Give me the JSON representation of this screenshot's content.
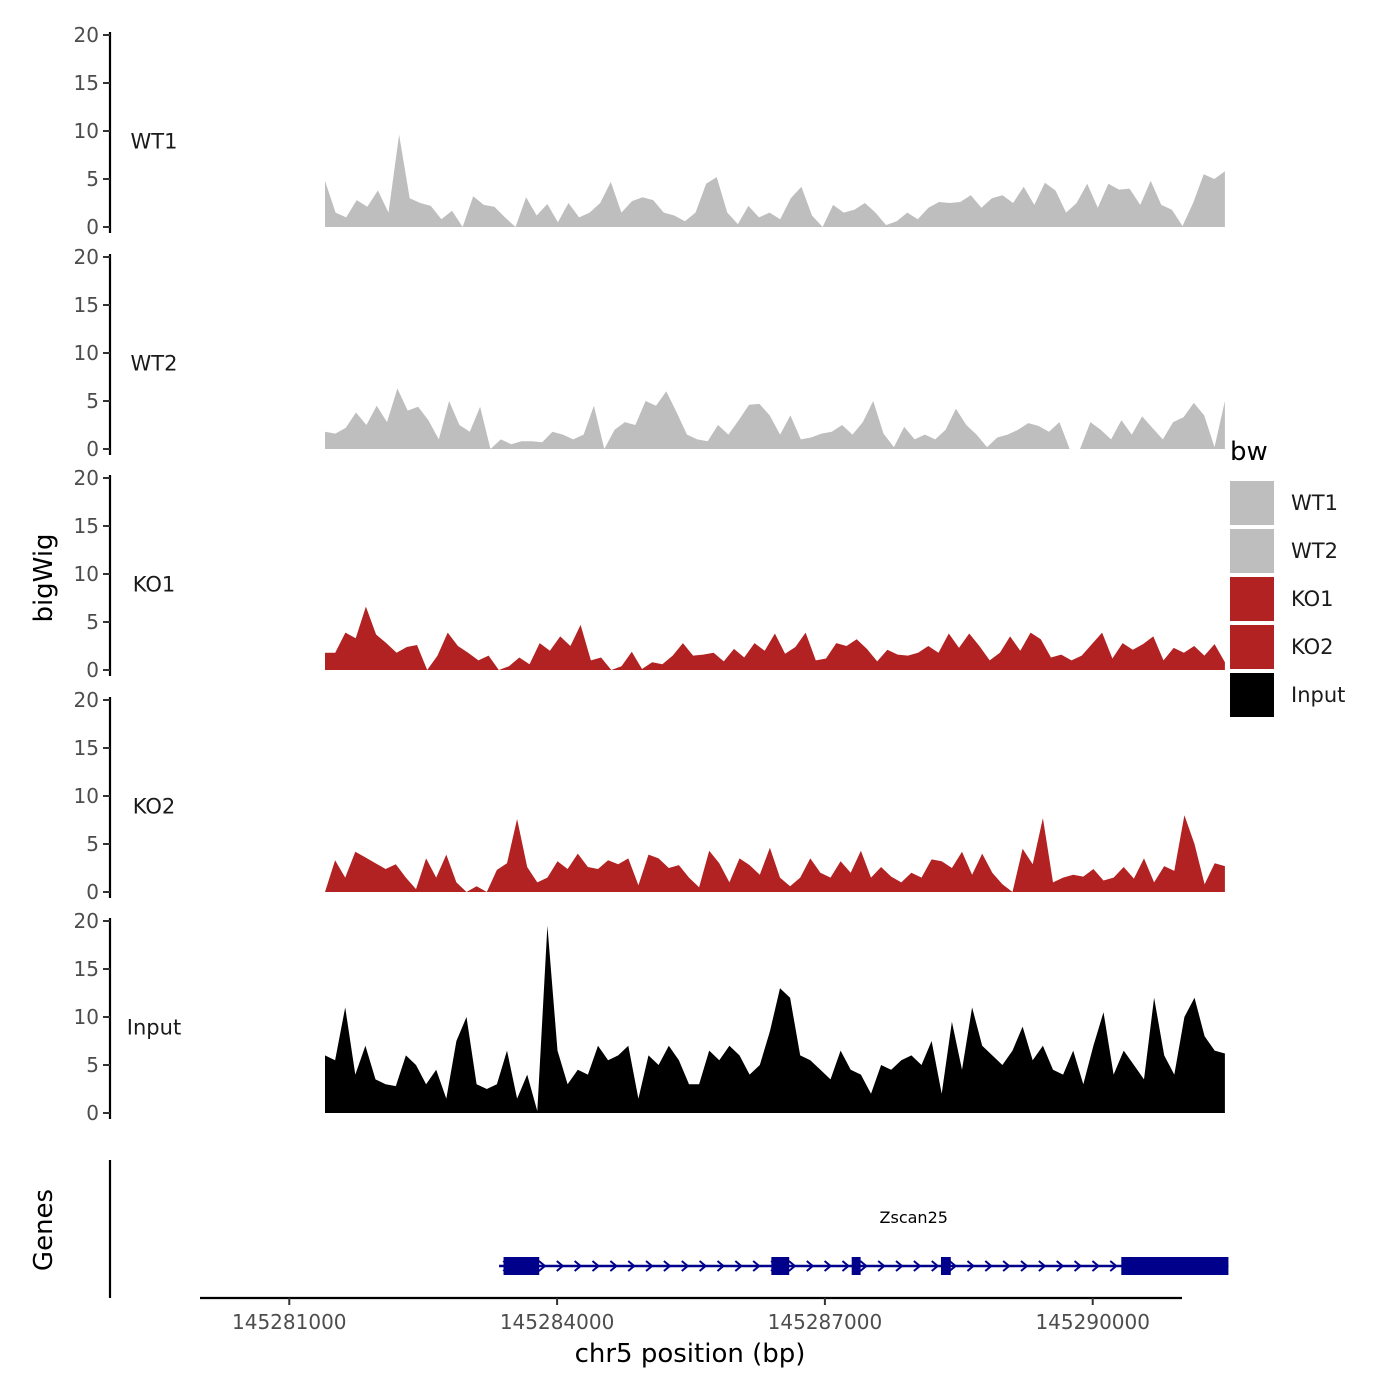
{
  "chart_data": {
    "type": "area",
    "ylabel": "bigWig",
    "xlabel": "chr5 position (bp)",
    "ylim": [
      0,
      20
    ],
    "yticks": [
      "0",
      "5",
      "10",
      "15",
      "20"
    ],
    "xlim": [
      145280000,
      145291000
    ],
    "xticks": [
      {
        "value": 145281000,
        "label": "145281000"
      },
      {
        "value": 145284000,
        "label": "145284000"
      },
      {
        "value": 145287000,
        "label": "145287000"
      },
      {
        "value": 145290000,
        "label": "145290000"
      }
    ],
    "data_range": [
      145281400,
      145291480
    ],
    "legend": {
      "title": "bw",
      "position": "right",
      "entries": [
        {
          "label": "WT1",
          "color": "#bebebe"
        },
        {
          "label": "WT2",
          "color": "#bebebe"
        },
        {
          "label": "KO1",
          "color": "#b22222"
        },
        {
          "label": "KO2",
          "color": "#b22222"
        },
        {
          "label": "Input",
          "color": "#000000"
        }
      ]
    },
    "series": [
      {
        "name": "WT1",
        "color": "#bebebe",
        "values": [
          4.8,
          1.5,
          1.0,
          2.8,
          2.1,
          3.8,
          1.5,
          9.6,
          3.0,
          2.5,
          2.2,
          0.8,
          1.7,
          0,
          3.2,
          2.3,
          2.1,
          1.0,
          0,
          3.1,
          1.2,
          2.4,
          0.5,
          2.5,
          1.0,
          1.5,
          2.5,
          4.7,
          1.5,
          2.7,
          3.1,
          2.8,
          1.5,
          1.2,
          0.6,
          1.5,
          4.5,
          5.2,
          1.5,
          0.3,
          2.2,
          1.0,
          1.5,
          0.8,
          3.0,
          4.2,
          1.2,
          0,
          2.3,
          1.5,
          1.8,
          2.5,
          1.5,
          0.2,
          0.6,
          1.5,
          0.8,
          2.0,
          2.6,
          2.5,
          2.6,
          3.3,
          2.0,
          3.0,
          3.3,
          2.5,
          4.2,
          2.3,
          4.6,
          3.8,
          1.5,
          2.5,
          4.5,
          2.0,
          4.5,
          3.9,
          4.0,
          2.3,
          4.8,
          2.3,
          1.8,
          0.1,
          2.5,
          5.5,
          5.0,
          5.8
        ]
      },
      {
        "name": "WT2",
        "color": "#bebebe",
        "values": [
          1.8,
          1.6,
          2.2,
          3.8,
          2.5,
          4.5,
          2.8,
          6.3,
          4.0,
          4.4,
          3.0,
          1.0,
          5.0,
          2.5,
          1.8,
          4.4,
          0,
          1.0,
          0.5,
          0.8,
          0.8,
          0.7,
          1.8,
          1.5,
          1.0,
          1.5,
          4.5,
          0,
          2.0,
          2.8,
          2.5,
          5.0,
          4.5,
          6.0,
          3.8,
          1.5,
          1.0,
          0.8,
          2.5,
          1.5,
          3.0,
          4.6,
          4.7,
          3.5,
          1.5,
          3.5,
          1.0,
          1.2,
          1.6,
          1.8,
          2.5,
          1.5,
          2.8,
          5.0,
          1.6,
          0.2,
          2.3,
          1.0,
          1.5,
          1.0,
          2.0,
          4.2,
          2.5,
          1.5,
          0.2,
          1.2,
          1.5,
          2.0,
          2.7,
          2.4,
          1.8,
          2.8,
          0,
          0,
          2.8,
          2.0,
          1.0,
          3.0,
          1.5,
          3.4,
          2.2,
          1.0,
          2.8,
          3.3,
          4.8,
          3.5,
          0.2,
          5.0
        ]
      },
      {
        "name": "KO1",
        "color": "#b22222",
        "values": [
          1.8,
          1.8,
          3.9,
          3.3,
          6.6,
          3.7,
          2.8,
          1.8,
          2.4,
          2.6,
          0,
          1.5,
          3.9,
          2.5,
          1.8,
          1.0,
          1.5,
          0,
          0.4,
          1.3,
          0.6,
          2.8,
          2.0,
          3.5,
          2.5,
          4.7,
          1.0,
          1.3,
          0,
          0.4,
          1.9,
          0.1,
          0.8,
          0.6,
          1.5,
          2.8,
          1.5,
          1.6,
          1.8,
          0.9,
          2.2,
          1.3,
          2.8,
          2.0,
          3.8,
          1.7,
          2.4,
          3.9,
          1.0,
          1.2,
          2.8,
          2.5,
          3.2,
          2.2,
          0.9,
          2.1,
          1.6,
          1.5,
          1.8,
          2.5,
          1.8,
          3.8,
          2.3,
          3.8,
          2.5,
          1.0,
          1.8,
          3.5,
          2.0,
          3.9,
          3.2,
          1.3,
          1.6,
          1.0,
          1.5,
          2.7,
          3.9,
          1.2,
          2.8,
          2.1,
          2.7,
          3.5,
          1.0,
          2.3,
          1.8,
          2.5,
          1.5,
          2.7,
          0.8
        ]
      },
      {
        "name": "KO2",
        "color": "#b22222",
        "values": [
          0,
          3.3,
          1.5,
          4.2,
          3.6,
          3.0,
          2.4,
          2.9,
          1.5,
          0.3,
          3.5,
          1.5,
          3.9,
          1.0,
          0,
          0.6,
          0,
          2.3,
          3.0,
          7.6,
          2.6,
          1.0,
          1.5,
          3.2,
          2.4,
          4.0,
          2.6,
          2.4,
          3.3,
          2.9,
          3.5,
          0.7,
          3.9,
          3.5,
          2.5,
          2.8,
          1.5,
          0.5,
          4.3,
          3.0,
          1.0,
          3.5,
          2.8,
          1.8,
          4.6,
          1.5,
          0.6,
          1.5,
          3.5,
          2.0,
          1.5,
          3.2,
          2.0,
          4.3,
          1.5,
          2.6,
          1.6,
          1.0,
          2.0,
          1.5,
          3.4,
          3.2,
          2.5,
          4.2,
          1.8,
          4.0,
          2.0,
          0.8,
          0,
          4.5,
          2.9,
          7.7,
          1.0,
          1.5,
          1.8,
          1.6,
          2.4,
          1.2,
          1.5,
          2.6,
          1.4,
          3.5,
          1.0,
          2.7,
          2.2,
          8.0,
          5.0,
          0.8,
          3.0,
          2.7
        ]
      },
      {
        "name": "Input",
        "color": "#000000",
        "values": [
          6.0,
          5.5,
          11.0,
          4.0,
          7.0,
          3.5,
          3.0,
          2.8,
          6.0,
          5.0,
          3.0,
          4.5,
          1.5,
          7.5,
          10.0,
          3.0,
          2.5,
          3.0,
          6.5,
          1.5,
          4.0,
          0.2,
          19.5,
          6.5,
          3.0,
          4.5,
          4.0,
          7.0,
          5.5,
          6.0,
          7.0,
          1.5,
          6.0,
          5.0,
          7.0,
          5.5,
          3.0,
          3.0,
          6.5,
          5.5,
          7.0,
          6.0,
          4.0,
          5.0,
          8.5,
          13.0,
          12.0,
          6.0,
          5.5,
          4.5,
          3.5,
          6.5,
          4.5,
          4.0,
          2.0,
          5.0,
          4.5,
          5.5,
          6.0,
          5.0,
          7.5,
          2.0,
          9.5,
          4.5,
          11.0,
          7.0,
          6.0,
          5.0,
          6.5,
          9.0,
          5.5,
          7.0,
          4.5,
          4.0,
          6.5,
          3.0,
          7.0,
          10.5,
          4.0,
          6.5,
          5.0,
          3.5,
          12.0,
          6.0,
          4.0,
          10.0,
          12.0,
          8.0,
          6.5,
          6.2
        ]
      }
    ],
    "genes_track": {
      "label": "Genes",
      "gene_name": "Zscan25",
      "start": 145283350,
      "end": 145291520,
      "exons": [
        [
          145283400,
          145283800
        ],
        [
          145286400,
          145286600
        ],
        [
          145287300,
          145287400
        ],
        [
          145288300,
          145288410
        ],
        [
          145290320,
          145291520
        ]
      ],
      "color": "#00008b"
    }
  }
}
